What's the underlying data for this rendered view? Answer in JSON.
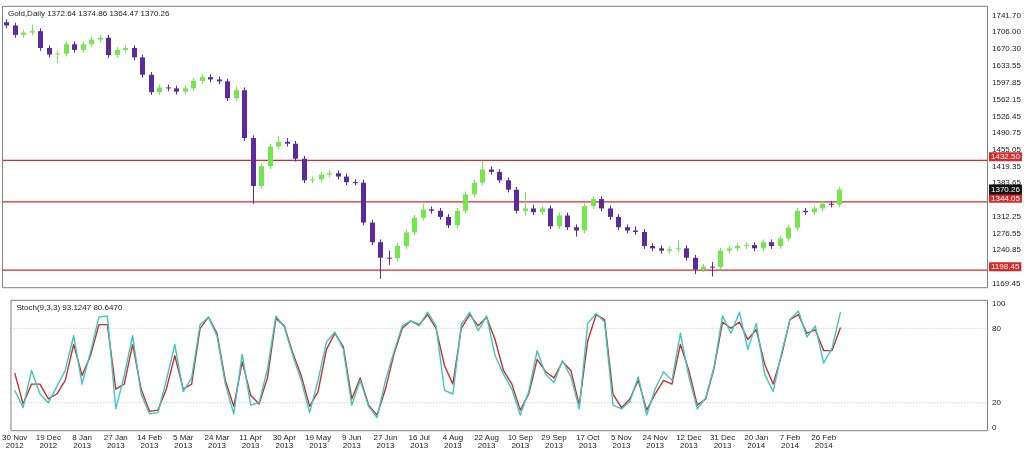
{
  "chart_data": [
    {
      "type": "candlestick",
      "title": "Gold,Daily 1372.64 1374.86 1364.47 1370.26",
      "categories": [
        null,
        null,
        null,
        null,
        null,
        null,
        null,
        null,
        null,
        null,
        null,
        null,
        null,
        null,
        null,
        null,
        null,
        null,
        null,
        null,
        null,
        null,
        null,
        null,
        null,
        null,
        null,
        null,
        null,
        null,
        null,
        null,
        null,
        null,
        null,
        null,
        null,
        null,
        null,
        null,
        null,
        null,
        null,
        null,
        null,
        null,
        null,
        null,
        null,
        null,
        null,
        null,
        null,
        null,
        null,
        null,
        null,
        null,
        null,
        null,
        null,
        null,
        null,
        null,
        null,
        null,
        null,
        null,
        null,
        null,
        null,
        null,
        null,
        null,
        null,
        null,
        null,
        null,
        null,
        null,
        null,
        null,
        null,
        null,
        null,
        null,
        null,
        null,
        null,
        null,
        null,
        null,
        null,
        null,
        null,
        null,
        null,
        null,
        null,
        null,
        null,
        null,
        null,
        null,
        null,
        null,
        null,
        null,
        null,
        null,
        null,
        null,
        null,
        null,
        null,
        null
      ],
      "ohlc": [
        [
          1727,
          1733,
          1714,
          1720
        ],
        [
          1720,
          1726,
          1694,
          1700
        ],
        [
          1700,
          1711,
          1694,
          1705
        ],
        [
          1705,
          1722,
          1699,
          1708
        ],
        [
          1708,
          1714,
          1666,
          1672
        ],
        [
          1672,
          1678,
          1652,
          1658
        ],
        [
          1658,
          1666,
          1640,
          1660
        ],
        [
          1660,
          1686,
          1654,
          1680
        ],
        [
          1680,
          1686,
          1662,
          1668
        ],
        [
          1668,
          1686,
          1662,
          1680
        ],
        [
          1680,
          1696,
          1674,
          1690
        ],
        [
          1690,
          1700,
          1684,
          1694
        ],
        [
          1694,
          1700,
          1651,
          1657
        ],
        [
          1657,
          1674,
          1651,
          1668
        ],
        [
          1668,
          1678,
          1662,
          1672
        ],
        [
          1672,
          1678,
          1646,
          1652
        ],
        [
          1652,
          1658,
          1609,
          1615
        ],
        [
          1615,
          1621,
          1572,
          1578
        ],
        [
          1578,
          1594,
          1572,
          1588
        ],
        [
          1588,
          1594,
          1580,
          1586
        ],
        [
          1586,
          1592,
          1573,
          1579
        ],
        [
          1579,
          1592,
          1573,
          1586
        ],
        [
          1586,
          1608,
          1580,
          1602
        ],
        [
          1602,
          1616,
          1596,
          1610
        ],
        [
          1610,
          1616,
          1599,
          1605
        ],
        [
          1605,
          1611,
          1595,
          1601
        ],
        [
          1601,
          1607,
          1559,
          1565
        ],
        [
          1565,
          1590,
          1559,
          1582
        ],
        [
          1582,
          1588,
          1474,
          1480
        ],
        [
          1480,
          1486,
          1340,
          1378
        ],
        [
          1378,
          1426,
          1372,
          1420
        ],
        [
          1420,
          1468,
          1414,
          1462
        ],
        [
          1462,
          1484,
          1456,
          1472
        ],
        [
          1472,
          1480,
          1462,
          1468
        ],
        [
          1468,
          1474,
          1430,
          1436
        ],
        [
          1436,
          1442,
          1384,
          1390
        ],
        [
          1390,
          1398,
          1384,
          1392
        ],
        [
          1392,
          1408,
          1386,
          1402
        ],
        [
          1402,
          1412,
          1396,
          1405
        ],
        [
          1405,
          1411,
          1392,
          1398
        ],
        [
          1398,
          1404,
          1380,
          1386
        ],
        [
          1386,
          1392,
          1379,
          1385
        ],
        [
          1385,
          1391,
          1294,
          1300
        ],
        [
          1300,
          1306,
          1252,
          1258
        ],
        [
          1258,
          1264,
          1180,
          1225
        ],
        [
          1225,
          1240,
          1210,
          1224
        ],
        [
          1224,
          1256,
          1218,
          1250
        ],
        [
          1250,
          1285,
          1244,
          1279
        ],
        [
          1279,
          1316,
          1273,
          1310
        ],
        [
          1310,
          1340,
          1304,
          1328
        ],
        [
          1328,
          1334,
          1319,
          1325
        ],
        [
          1325,
          1331,
          1306,
          1312
        ],
        [
          1312,
          1318,
          1288,
          1294
        ],
        [
          1294,
          1331,
          1288,
          1325
        ],
        [
          1325,
          1366,
          1319,
          1360
        ],
        [
          1360,
          1391,
          1354,
          1385
        ],
        [
          1385,
          1432,
          1379,
          1413
        ],
        [
          1413,
          1420,
          1402,
          1408
        ],
        [
          1408,
          1414,
          1384,
          1390
        ],
        [
          1390,
          1396,
          1364,
          1370
        ],
        [
          1370,
          1376,
          1319,
          1325
        ],
        [
          1325,
          1365,
          1315,
          1330
        ],
        [
          1330,
          1338,
          1316,
          1322
        ],
        [
          1322,
          1336,
          1316,
          1330
        ],
        [
          1330,
          1336,
          1286,
          1292
        ],
        [
          1292,
          1321,
          1286,
          1315
        ],
        [
          1315,
          1321,
          1284,
          1290
        ],
        [
          1290,
          1296,
          1270,
          1283
        ],
        [
          1283,
          1341,
          1277,
          1335
        ],
        [
          1335,
          1356,
          1329,
          1350
        ],
        [
          1350,
          1356,
          1324,
          1330
        ],
        [
          1330,
          1336,
          1306,
          1312
        ],
        [
          1312,
          1318,
          1284,
          1290
        ],
        [
          1290,
          1296,
          1277,
          1283
        ],
        [
          1283,
          1292,
          1274,
          1280
        ],
        [
          1280,
          1286,
          1244,
          1250
        ],
        [
          1250,
          1256,
          1239,
          1245
        ],
        [
          1245,
          1251,
          1234,
          1240
        ],
        [
          1240,
          1249,
          1234,
          1243
        ],
        [
          1243,
          1262,
          1237,
          1245
        ],
        [
          1245,
          1251,
          1219,
          1225
        ],
        [
          1225,
          1231,
          1190,
          1200
        ],
        [
          1200,
          1212,
          1194,
          1206
        ],
        [
          1206,
          1216,
          1185,
          1205
        ],
        [
          1205,
          1246,
          1199,
          1240
        ],
        [
          1240,
          1251,
          1234,
          1245
        ],
        [
          1245,
          1256,
          1239,
          1250
        ],
        [
          1250,
          1258,
          1244,
          1252
        ],
        [
          1252,
          1258,
          1239,
          1245
        ],
        [
          1245,
          1264,
          1239,
          1258
        ],
        [
          1258,
          1264,
          1244,
          1250
        ],
        [
          1250,
          1272,
          1244,
          1266
        ],
        [
          1266,
          1295,
          1260,
          1289
        ],
        [
          1289,
          1331,
          1283,
          1325
        ],
        [
          1325,
          1331,
          1316,
          1322
        ],
        [
          1322,
          1336,
          1316,
          1330
        ],
        [
          1330,
          1346,
          1324,
          1340
        ],
        [
          1340,
          1346,
          1332,
          1338
        ],
        [
          1338,
          1376,
          1332,
          1370.26
        ],
        null,
        null,
        null,
        null,
        null,
        null,
        null,
        null,
        null,
        null,
        null,
        null,
        null,
        null,
        null,
        null,
        null
      ],
      "colors": [
        "#5b2b9e",
        "#5b2b9e",
        "#72e84c",
        "#72e84c",
        "#5b2b9e",
        "#5b2b9e",
        "#72e84c",
        "#72e84c",
        "#5b2b9e",
        "#72e84c",
        "#72e84c",
        "#72e84c",
        "#5b2b9e",
        "#72e84c",
        "#72e84c",
        "#5b2b9e",
        "#5b2b9e",
        "#5b2b9e",
        "#72e84c",
        "#5b2b9e",
        "#5b2b9e",
        "#72e84c",
        "#72e84c",
        "#72e84c",
        "#5b2b9e",
        "#5b2b9e",
        "#5b2b9e",
        "#72e84c",
        "#5b2b9e",
        "#5b2b9e",
        "#72e84c",
        "#72e84c",
        "#72e84c",
        "#5b2b9e",
        "#5b2b9e",
        "#5b2b9e",
        "#72e84c",
        "#72e84c",
        "#72e84c",
        "#5b2b9e",
        "#5b2b9e",
        "#5b2b9e",
        "#5b2b9e",
        "#5b2b9e",
        "#5b2b9e",
        "#5b2b9e",
        "#72e84c",
        "#72e84c",
        "#72e84c",
        "#72e84c",
        "#5b2b9e",
        "#5b2b9e",
        "#5b2b9e",
        "#72e84c",
        "#72e84c",
        "#72e84c",
        "#72e84c",
        "#5b2b9e",
        "#5b2b9e",
        "#5b2b9e",
        "#5b2b9e",
        "#72e84c",
        "#5b2b9e",
        "#72e84c",
        "#5b2b9e",
        "#72e84c",
        "#5b2b9e",
        "#5b2b9e",
        "#72e84c",
        "#72e84c",
        "#5b2b9e",
        "#5b2b9e",
        "#5b2b9e",
        "#5b2b9e",
        "#5b2b9e",
        "#5b2b9e",
        "#5b2b9e",
        "#5b2b9e",
        "#72e84c",
        "#72e84c",
        "#5b2b9e",
        "#5b2b9e",
        "#72e84c",
        "#5b2b9e",
        "#72e84c",
        "#72e84c",
        "#72e84c",
        "#72e84c",
        "#5b2b9e",
        "#72e84c",
        "#5b2b9e",
        "#72e84c",
        "#72e84c",
        "#72e84c",
        "#5b2b9e",
        "#72e84c",
        "#72e84c",
        "#5b2b9e",
        "#72e84c",
        null,
        null,
        null,
        null,
        null,
        null,
        null,
        null,
        null,
        null,
        null,
        null,
        null,
        null,
        null,
        null,
        null
      ],
      "ylim": [
        1160,
        1762
      ],
      "yticks": [
        {
          "value": 1741.7,
          "label": "1741.70"
        },
        {
          "value": 1706,
          "label": "1706.00"
        },
        {
          "value": 1670.3,
          "label": "1670.30"
        },
        {
          "value": 1633.55,
          "label": "1633.55"
        },
        {
          "value": 1597.85,
          "label": "1597.85"
        },
        {
          "value": 1562.15,
          "label": "1562.15"
        },
        {
          "value": 1526.45,
          "label": "1526.45"
        },
        {
          "value": 1490.75,
          "label": "1490.75"
        },
        {
          "value": 1455.05,
          "label": "1455.05"
        },
        {
          "value": 1419.35,
          "label": "1419.35"
        },
        {
          "value": 1383.65,
          "label": "1383.65"
        },
        {
          "value": 1312.25,
          "label": "1312.25"
        },
        {
          "value": 1276.55,
          "label": "1276.55"
        },
        {
          "value": 1240.85,
          "label": "1240.85"
        },
        {
          "value": 1169.45,
          "label": "1169.45"
        }
      ],
      "ref_lines": [
        {
          "axis": "y",
          "value": 1432.5,
          "label": "1432.50",
          "color": "#d42a2a"
        },
        {
          "axis": "y",
          "value": 1344.05,
          "label": "1344.05",
          "color": "#d42a2a"
        },
        {
          "axis": "y",
          "value": 1198.45,
          "label": "1198.45",
          "color": "#d42a2a"
        }
      ],
      "annotations": [
        "1370.26"
      ],
      "tick_labels": "y",
      "grid": false,
      "legend": false
    },
    {
      "type": "line",
      "title": "Stoch(9,3,3) 93.1247 80.6470",
      "categories": [
        "30 Nov 2012",
        null,
        null,
        null,
        "19 Dec 2012",
        null,
        null,
        null,
        "8 Jan 2013",
        null,
        null,
        null,
        "27 Jan 2013",
        null,
        null,
        null,
        "14 Feb 2013",
        null,
        null,
        null,
        "5 Mar 2013",
        null,
        null,
        null,
        "24 Mar 2013",
        null,
        null,
        null,
        "11 Apr 2013",
        null,
        null,
        null,
        "30 Apr 2013",
        null,
        null,
        null,
        "19 May 2013",
        null,
        null,
        null,
        "9 Jun 2013",
        null,
        null,
        null,
        "27 Jun 2013",
        null,
        null,
        null,
        "16 Jul 2013",
        null,
        null,
        null,
        "4 Aug 2013",
        null,
        null,
        null,
        "22 Aug 2013",
        null,
        null,
        null,
        "10 Sep 2013",
        null,
        null,
        null,
        "29 Sep 2013",
        null,
        null,
        null,
        "17 Oct 2013",
        null,
        null,
        null,
        "5 Nov 2013",
        null,
        null,
        null,
        "24 Nov 2013",
        null,
        null,
        null,
        "12 Dec 2013",
        null,
        null,
        null,
        "31 Dec 2013",
        null,
        null,
        null,
        "20 Jan 2014",
        null,
        null,
        null,
        "7 Feb 2014",
        null,
        null,
        null,
        "26 Feb 2014",
        null,
        null,
        null,
        null,
        null,
        null,
        null,
        null,
        null,
        null,
        null,
        null,
        null,
        null,
        null,
        null,
        null,
        null,
        null
      ],
      "series": [
        {
          "color": "#3cc8c0",
          "values": [
            30,
            16,
            46,
            27,
            20,
            33,
            46,
            74,
            35,
            61,
            89,
            90,
            15,
            42,
            74,
            27,
            11,
            12,
            38,
            67,
            29,
            40,
            83,
            89,
            74,
            35,
            11,
            59,
            18,
            20,
            47,
            90,
            81,
            58,
            38,
            12,
            38,
            69,
            77,
            63,
            18,
            38,
            17,
            8,
            38,
            61,
            82,
            86,
            82,
            93,
            82,
            30,
            27,
            83,
            93,
            78,
            90,
            58,
            43,
            31,
            10,
            29,
            62,
            43,
            36,
            54,
            41,
            15,
            84,
            92,
            85,
            18,
            15,
            21,
            41,
            10,
            31,
            45,
            38,
            76,
            41,
            15,
            24,
            49,
            90,
            76,
            93,
            63,
            84,
            43,
            29,
            60,
            87,
            94,
            73,
            82,
            52,
            64,
            93.1,
            null,
            null,
            null,
            null,
            null,
            null,
            null,
            null,
            null,
            null,
            null,
            null,
            null,
            null,
            null,
            null,
            null
          ]
        },
        {
          "color": "#c83030",
          "values": [
            44,
            19,
            35,
            35,
            23,
            27,
            38,
            67,
            42,
            58,
            83,
            83,
            31,
            35,
            67,
            31,
            13,
            14,
            31,
            58,
            31,
            35,
            80,
            89,
            76,
            38,
            17,
            53,
            26,
            19,
            40,
            88,
            82,
            60,
            42,
            17,
            29,
            63,
            76,
            65,
            23,
            40,
            18,
            10,
            31,
            59,
            80,
            86,
            83,
            91,
            80,
            50,
            35,
            80,
            91,
            82,
            89,
            71,
            46,
            35,
            14,
            27,
            55,
            45,
            40,
            53,
            46,
            18,
            70,
            91,
            87,
            27,
            16,
            23,
            38,
            14,
            27,
            38,
            35,
            67,
            46,
            18,
            23,
            48,
            85,
            80,
            85,
            71,
            79,
            51,
            35,
            58,
            87,
            91,
            76,
            79,
            62,
            62,
            80.6,
            null,
            null,
            null,
            null,
            null,
            null,
            null,
            null,
            null,
            null,
            null,
            null,
            null,
            null,
            null,
            null,
            null
          ]
        }
      ],
      "ylim": [
        -3,
        103
      ],
      "yticks": [
        0,
        20,
        80,
        100
      ],
      "ref_lines": [
        {
          "axis": "y",
          "value": 20,
          "color": "#c8c8c8",
          "line_style": "dotted"
        },
        {
          "axis": "y",
          "value": 80,
          "color": "#c8c8c8",
          "line_style": "dotted"
        }
      ],
      "marker": "none",
      "line_style": "solid",
      "grid": false,
      "legend": false
    }
  ]
}
